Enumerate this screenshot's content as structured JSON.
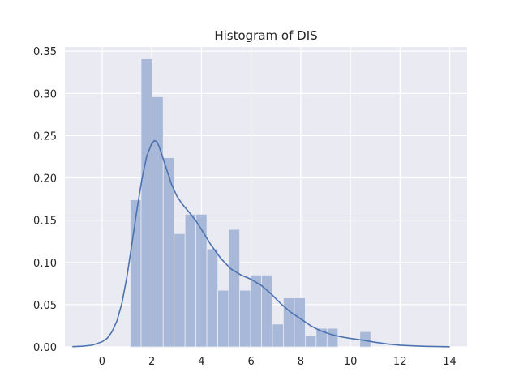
{
  "chart_data": {
    "type": "bar",
    "title": "Histogram of DIS",
    "xlabel": "",
    "ylabel": "",
    "xlim": [
      -1.5,
      14.7
    ],
    "ylim": [
      0,
      0.355
    ],
    "xticks": [
      0,
      2,
      4,
      6,
      8,
      10,
      12,
      14
    ],
    "yticks": [
      0.0,
      0.05,
      0.1,
      0.15,
      0.2,
      0.25,
      0.3,
      0.35
    ],
    "ytick_labels": [
      "0.00",
      "0.05",
      "0.10",
      "0.15",
      "0.20",
      "0.25",
      "0.30",
      "0.35"
    ],
    "grid": true,
    "background": "#eaeaf2",
    "bar_color": "#a8b8d8",
    "line_color": "#4c72b0",
    "bins": [
      {
        "x0": 1.13,
        "x1": 1.57,
        "density": 0.174
      },
      {
        "x0": 1.57,
        "x1": 2.01,
        "density": 0.341
      },
      {
        "x0": 2.01,
        "x1": 2.46,
        "density": 0.296
      },
      {
        "x0": 2.46,
        "x1": 2.9,
        "density": 0.224
      },
      {
        "x0": 2.9,
        "x1": 3.34,
        "density": 0.134
      },
      {
        "x0": 3.34,
        "x1": 3.78,
        "density": 0.157
      },
      {
        "x0": 3.78,
        "x1": 4.22,
        "density": 0.157
      },
      {
        "x0": 4.22,
        "x1": 4.66,
        "density": 0.116
      },
      {
        "x0": 4.66,
        "x1": 5.1,
        "density": 0.067
      },
      {
        "x0": 5.1,
        "x1": 5.54,
        "density": 0.139
      },
      {
        "x0": 5.54,
        "x1": 5.98,
        "density": 0.067
      },
      {
        "x0": 5.98,
        "x1": 6.42,
        "density": 0.085
      },
      {
        "x0": 6.42,
        "x1": 6.86,
        "density": 0.085
      },
      {
        "x0": 6.86,
        "x1": 7.3,
        "density": 0.027
      },
      {
        "x0": 7.3,
        "x1": 7.74,
        "density": 0.058
      },
      {
        "x0": 7.74,
        "x1": 8.18,
        "density": 0.058
      },
      {
        "x0": 8.18,
        "x1": 8.62,
        "density": 0.013
      },
      {
        "x0": 8.62,
        "x1": 9.06,
        "density": 0.022
      },
      {
        "x0": 9.06,
        "x1": 9.5,
        "density": 0.022
      },
      {
        "x0": 10.38,
        "x1": 10.82,
        "density": 0.018
      }
    ],
    "kde": {
      "x": [
        -1.2,
        -0.8,
        -0.4,
        0.0,
        0.2,
        0.4,
        0.6,
        0.8,
        1.0,
        1.2,
        1.4,
        1.6,
        1.8,
        2.0,
        2.1,
        2.2,
        2.3,
        2.4,
        2.6,
        2.8,
        3.0,
        3.2,
        3.4,
        3.6,
        3.8,
        4.0,
        4.4,
        4.8,
        5.2,
        5.6,
        6.0,
        6.4,
        6.8,
        7.2,
        7.6,
        8.0,
        8.4,
        8.8,
        9.2,
        9.6,
        10.0,
        10.5,
        11.0,
        11.5,
        12.0,
        12.5,
        13.0,
        13.5,
        14.0
      ],
      "y": [
        0.0003,
        0.0008,
        0.002,
        0.006,
        0.01,
        0.018,
        0.031,
        0.052,
        0.083,
        0.122,
        0.162,
        0.198,
        0.226,
        0.241,
        0.244,
        0.243,
        0.237,
        0.228,
        0.21,
        0.192,
        0.179,
        0.17,
        0.163,
        0.156,
        0.148,
        0.139,
        0.12,
        0.104,
        0.092,
        0.085,
        0.08,
        0.073,
        0.063,
        0.051,
        0.041,
        0.033,
        0.025,
        0.019,
        0.015,
        0.012,
        0.01,
        0.008,
        0.0055,
        0.0035,
        0.002,
        0.0012,
        0.0007,
        0.0004,
        0.0002
      ]
    }
  }
}
